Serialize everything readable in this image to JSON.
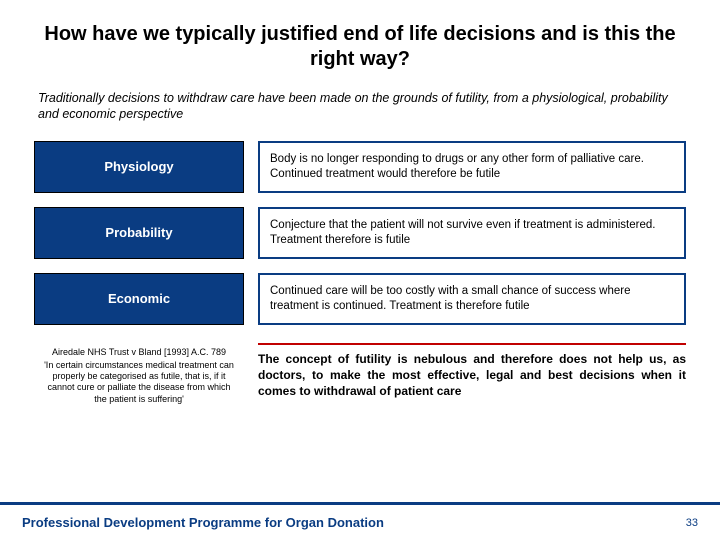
{
  "colors": {
    "brand_blue": "#0a3c82",
    "accent_red": "#c00000",
    "background": "#ffffff",
    "text": "#000000"
  },
  "title": "How have we typically justified end of life decisions and is this the right way?",
  "intro": "Traditionally decisions to withdraw care have been made on the grounds of futility, from a physiological, probability and economic perspective",
  "rows": [
    {
      "label": "Physiology",
      "desc": "Body is no longer responding to drugs or any other form of palliative care.  Continued treatment would therefore be futile"
    },
    {
      "label": "Probability",
      "desc": "Conjecture that the patient will not survive even if treatment is administered.  Treatment therefore is futile"
    },
    {
      "label": "Economic",
      "desc": "Continued care will be too costly with a small chance of success where treatment is continued.  Treatment is therefore futile"
    }
  ],
  "citation": {
    "title": "Airedale NHS Trust v Bland [1993] A.C. 789",
    "body": "'In certain circumstances medical treatment can properly be categorised as futile, that is, if it cannot cure or palliate the disease from which the patient is suffering'"
  },
  "conclusion": "The concept of futility is nebulous and therefore does not help us, as doctors, to make the most effective, legal and best decisions when it comes to withdrawal of  patient care",
  "footer": "Professional Development Programme for Organ Donation",
  "page": "33"
}
